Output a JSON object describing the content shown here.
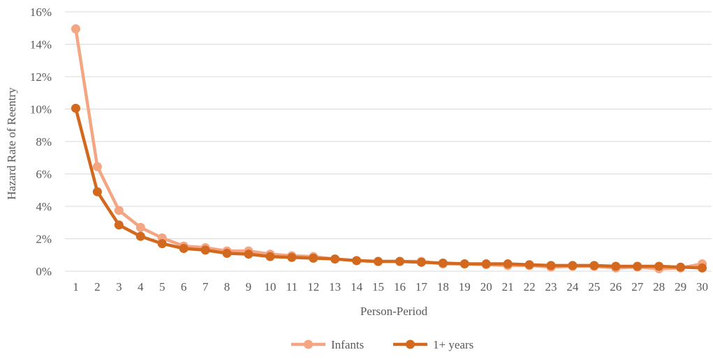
{
  "chart_data": {
    "type": "line",
    "title": "",
    "xlabel": "Person-Period",
    "ylabel": "Hazard Rate of Reentry",
    "ylim": [
      0,
      16
    ],
    "y_tick_format": "percent",
    "y_ticks": [
      "0%",
      "2%",
      "4%",
      "6%",
      "8%",
      "10%",
      "12%",
      "14%",
      "16%"
    ],
    "y_tick_values": [
      0,
      2,
      4,
      6,
      8,
      10,
      12,
      14,
      16
    ],
    "x": [
      "1",
      "2",
      "3",
      "4",
      "5",
      "6",
      "7",
      "8",
      "9",
      "10",
      "11",
      "12",
      "13",
      "14",
      "15",
      "16",
      "17",
      "18",
      "19",
      "20",
      "21",
      "22",
      "23",
      "24",
      "25",
      "26",
      "27",
      "28",
      "29",
      "30"
    ],
    "grid": "horizontal",
    "legend_position": "bottom",
    "series": [
      {
        "name": "Infants",
        "color": "#F4A582",
        "values": [
          14.95,
          6.45,
          3.75,
          2.7,
          2.05,
          1.55,
          1.45,
          1.25,
          1.25,
          1.05,
          0.95,
          0.9,
          0.75,
          0.65,
          0.6,
          0.6,
          0.6,
          0.45,
          0.45,
          0.4,
          0.35,
          0.35,
          0.25,
          0.3,
          0.3,
          0.2,
          0.25,
          0.15,
          0.2,
          0.45
        ]
      },
      {
        "name": "1+ years",
        "color": "#D2691E",
        "values": [
          10.05,
          4.9,
          2.85,
          2.15,
          1.7,
          1.4,
          1.3,
          1.1,
          1.05,
          0.9,
          0.85,
          0.8,
          0.75,
          0.65,
          0.6,
          0.6,
          0.55,
          0.5,
          0.45,
          0.45,
          0.45,
          0.4,
          0.35,
          0.35,
          0.35,
          0.3,
          0.3,
          0.3,
          0.25,
          0.2
        ]
      }
    ]
  }
}
